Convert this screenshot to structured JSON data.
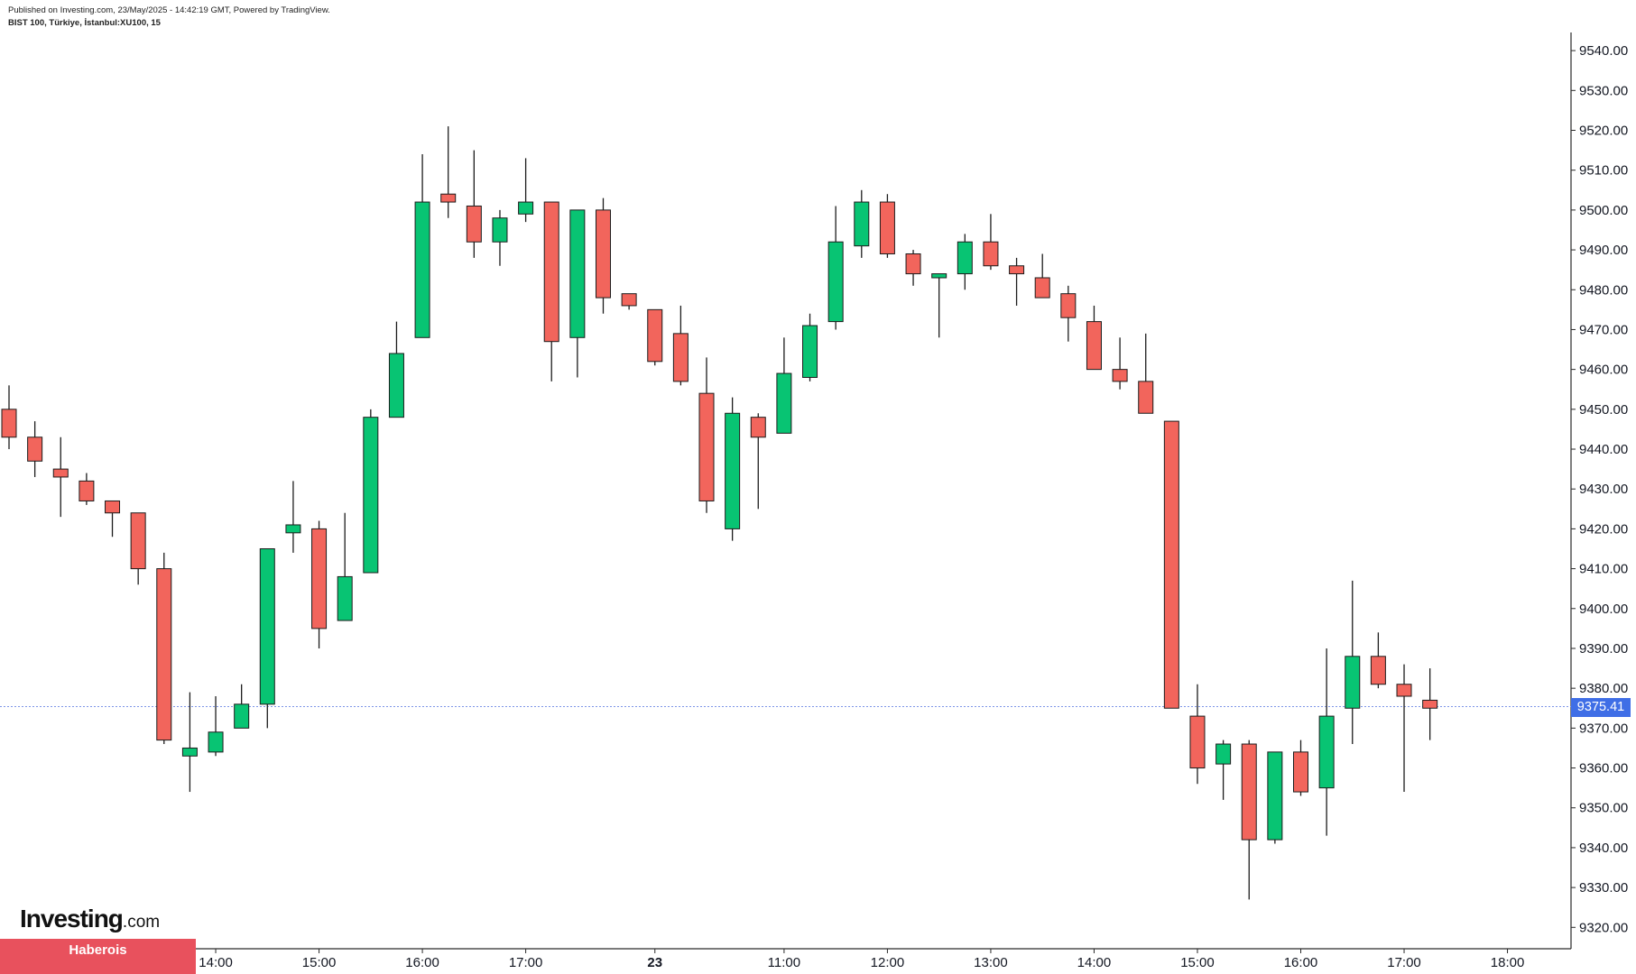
{
  "header": {
    "published": "Published on Investing.com, 23/May/2025 - 14:42:19 GMT, Powered by TradingView.",
    "symbol": "BIST 100, Türkiye, İstanbul:XU100, 15"
  },
  "price_badge": "9375.41",
  "logo": {
    "main": "Investing",
    "suffix": ".com"
  },
  "watermark": "Haberois",
  "colors": {
    "up": "#08c473",
    "down": "#f2655c",
    "wick": "#1c1c1c",
    "last_line": "#7f96e8",
    "badge": "#3f6ee6"
  },
  "chart_data": {
    "type": "candlestick",
    "title": "",
    "y_ticks": [
      "9320.00",
      "9330.00",
      "9340.00",
      "9350.00",
      "9360.00",
      "9370.00",
      "9380.00",
      "9390.00",
      "9400.00",
      "9410.00",
      "9420.00",
      "9430.00",
      "9440.00",
      "9450.00",
      "9460.00",
      "9470.00",
      "9480.00",
      "9490.00",
      "9500.00",
      "9510.00",
      "9520.00",
      "9530.00",
      "9540.00"
    ],
    "ylim": [
      9316,
      9543
    ],
    "x_ticks": [
      {
        "label": "12:00",
        "i": 0,
        "bold": false
      },
      {
        "label": "13:00",
        "i": 4,
        "bold": false
      },
      {
        "label": "14:00",
        "i": 8,
        "bold": false
      },
      {
        "label": "15:00",
        "i": 12,
        "bold": false
      },
      {
        "label": "16:00",
        "i": 16,
        "bold": false
      },
      {
        "label": "17:00",
        "i": 20,
        "bold": false
      },
      {
        "label": "23",
        "i": 25,
        "bold": true
      },
      {
        "label": "11:00",
        "i": 30,
        "bold": false
      },
      {
        "label": "12:00",
        "i": 34,
        "bold": false
      },
      {
        "label": "13:00",
        "i": 38,
        "bold": false
      },
      {
        "label": "14:00",
        "i": 42,
        "bold": false
      },
      {
        "label": "15:00",
        "i": 46,
        "bold": false
      },
      {
        "label": "16:00",
        "i": 50,
        "bold": false
      },
      {
        "label": "17:00",
        "i": 54,
        "bold": false
      },
      {
        "label": "18:00",
        "i": 58,
        "bold": false
      }
    ],
    "last_price": 9375.41,
    "candles": [
      {
        "o": 9450,
        "h": 9456,
        "l": 9440,
        "c": 9443
      },
      {
        "o": 9443,
        "h": 9447,
        "l": 9433,
        "c": 9437
      },
      {
        "o": 9435,
        "h": 9443,
        "l": 9423,
        "c": 9433
      },
      {
        "o": 9432,
        "h": 9434,
        "l": 9426,
        "c": 9427
      },
      {
        "o": 9427,
        "h": 9427,
        "l": 9418,
        "c": 9424
      },
      {
        "o": 9424,
        "h": 9424,
        "l": 9406,
        "c": 9410
      },
      {
        "o": 9410,
        "h": 9414,
        "l": 9366,
        "c": 9367
      },
      {
        "o": 9363,
        "h": 9379,
        "l": 9354,
        "c": 9365
      },
      {
        "o": 9364,
        "h": 9378,
        "l": 9363,
        "c": 9369
      },
      {
        "o": 9370,
        "h": 9381,
        "l": 9370,
        "c": 9376
      },
      {
        "o": 9376,
        "h": 9415,
        "l": 9370,
        "c": 9415
      },
      {
        "o": 9419,
        "h": 9432,
        "l": 9414,
        "c": 9421
      },
      {
        "o": 9420,
        "h": 9422,
        "l": 9390,
        "c": 9395
      },
      {
        "o": 9397,
        "h": 9424,
        "l": 9397,
        "c": 9408
      },
      {
        "o": 9409,
        "h": 9450,
        "l": 9409,
        "c": 9448
      },
      {
        "o": 9448,
        "h": 9472,
        "l": 9448,
        "c": 9464
      },
      {
        "o": 9468,
        "h": 9514,
        "l": 9468,
        "c": 9502
      },
      {
        "o": 9504,
        "h": 9521,
        "l": 9498,
        "c": 9502
      },
      {
        "o": 9501,
        "h": 9515,
        "l": 9488,
        "c": 9492
      },
      {
        "o": 9492,
        "h": 9500,
        "l": 9486,
        "c": 9498
      },
      {
        "o": 9499,
        "h": 9513,
        "l": 9497,
        "c": 9502
      },
      {
        "o": 9502,
        "h": 9502,
        "l": 9457,
        "c": 9467
      },
      {
        "o": 9468,
        "h": 9500,
        "l": 9458,
        "c": 9500
      },
      {
        "o": 9500,
        "h": 9503,
        "l": 9474,
        "c": 9478
      },
      {
        "o": 9479,
        "h": 9479,
        "l": 9475,
        "c": 9476
      },
      {
        "o": 9475,
        "h": 9475,
        "l": 9461,
        "c": 9462
      },
      {
        "o": 9469,
        "h": 9476,
        "l": 9456,
        "c": 9457
      },
      {
        "o": 9454,
        "h": 9463,
        "l": 9424,
        "c": 9427
      },
      {
        "o": 9420,
        "h": 9453,
        "l": 9417,
        "c": 9449
      },
      {
        "o": 9448,
        "h": 9449,
        "l": 9425,
        "c": 9443
      },
      {
        "o": 9444,
        "h": 9468,
        "l": 9444,
        "c": 9459
      },
      {
        "o": 9458,
        "h": 9474,
        "l": 9457,
        "c": 9471
      },
      {
        "o": 9472,
        "h": 9501,
        "l": 9470,
        "c": 9492
      },
      {
        "o": 9491,
        "h": 9505,
        "l": 9488,
        "c": 9502
      },
      {
        "o": 9502,
        "h": 9504,
        "l": 9488,
        "c": 9489
      },
      {
        "o": 9489,
        "h": 9490,
        "l": 9481,
        "c": 9484
      },
      {
        "o": 9483,
        "h": 9484,
        "l": 9468,
        "c": 9484
      },
      {
        "o": 9484,
        "h": 9494,
        "l": 9480,
        "c": 9492
      },
      {
        "o": 9492,
        "h": 9499,
        "l": 9485,
        "c": 9486
      },
      {
        "o": 9486,
        "h": 9488,
        "l": 9476,
        "c": 9484
      },
      {
        "o": 9483,
        "h": 9489,
        "l": 9479,
        "c": 9478
      },
      {
        "o": 9479,
        "h": 9481,
        "l": 9467,
        "c": 9473
      },
      {
        "o": 9472,
        "h": 9476,
        "l": 9460,
        "c": 9460
      },
      {
        "o": 9460,
        "h": 9468,
        "l": 9455,
        "c": 9457
      },
      {
        "o": 9457,
        "h": 9469,
        "l": 9449,
        "c": 9449
      },
      {
        "o": 9447,
        "h": 9447,
        "l": 9375,
        "c": 9375
      },
      {
        "o": 9373,
        "h": 9381,
        "l": 9356,
        "c": 9360
      },
      {
        "o": 9361,
        "h": 9367,
        "l": 9352,
        "c": 9366
      },
      {
        "o": 9366,
        "h": 9367,
        "l": 9327,
        "c": 9342
      },
      {
        "o": 9342,
        "h": 9364,
        "l": 9341,
        "c": 9364
      },
      {
        "o": 9364,
        "h": 9367,
        "l": 9353,
        "c": 9354
      },
      {
        "o": 9355,
        "h": 9390,
        "l": 9343,
        "c": 9373
      },
      {
        "o": 9375,
        "h": 9407,
        "l": 9366,
        "c": 9388
      },
      {
        "o": 9388,
        "h": 9394,
        "l": 9380,
        "c": 9381
      },
      {
        "o": 9381,
        "h": 9386,
        "l": 9354,
        "c": 9378
      },
      {
        "o": 9377,
        "h": 9385,
        "l": 9367,
        "c": 9375
      }
    ]
  }
}
